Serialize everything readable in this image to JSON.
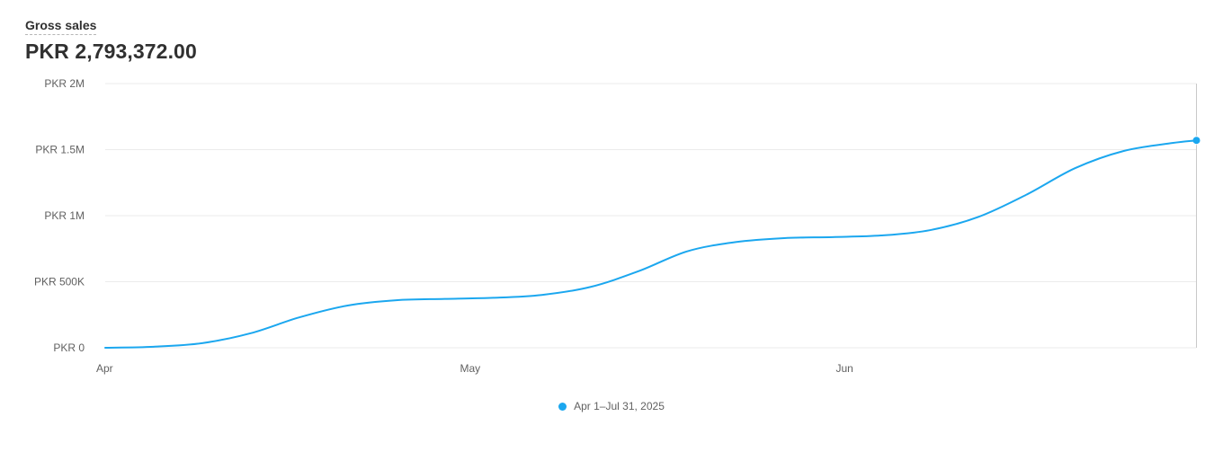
{
  "header": {
    "title": "Gross sales",
    "value": "PKR 2,793,372.00"
  },
  "colors": {
    "series": "#1ba7ef",
    "grid": "#ebebeb",
    "hover_line": "#c9c9c9"
  },
  "chart_data": {
    "type": "line",
    "title": "Gross sales",
    "xlabel": "",
    "ylabel": "",
    "ylim": [
      0,
      2000000
    ],
    "yticks": [
      {
        "value": 0,
        "label": "PKR 0"
      },
      {
        "value": 500000,
        "label": "PKR 500K"
      },
      {
        "value": 1000000,
        "label": "PKR 1M"
      },
      {
        "value": 1500000,
        "label": "PKR 1.5M"
      },
      {
        "value": 2000000,
        "label": "PKR 2M"
      }
    ],
    "xlim": [
      "2025-04-01",
      "2025-07-01"
    ],
    "xticks": [
      {
        "value": "2025-04-01",
        "label": "Apr"
      },
      {
        "value": "2025-05-01",
        "label": "May"
      },
      {
        "value": "2025-06-01",
        "label": "Jun"
      }
    ],
    "grid": true,
    "legend": "bottom-center",
    "hover_point": {
      "x": "2025-06-30",
      "y": 1570000
    },
    "series": [
      {
        "name": "Apr 1–Jul 31, 2025",
        "points": [
          {
            "x": "2025-04-01",
            "y": 0
          },
          {
            "x": "2025-04-05",
            "y": 8000
          },
          {
            "x": "2025-04-09",
            "y": 35000
          },
          {
            "x": "2025-04-13",
            "y": 110000
          },
          {
            "x": "2025-04-17",
            "y": 230000
          },
          {
            "x": "2025-04-21",
            "y": 320000
          },
          {
            "x": "2025-04-25",
            "y": 360000
          },
          {
            "x": "2025-04-29",
            "y": 370000
          },
          {
            "x": "2025-05-03",
            "y": 378000
          },
          {
            "x": "2025-05-07",
            "y": 400000
          },
          {
            "x": "2025-05-11",
            "y": 460000
          },
          {
            "x": "2025-05-15",
            "y": 580000
          },
          {
            "x": "2025-05-19",
            "y": 730000
          },
          {
            "x": "2025-05-23",
            "y": 800000
          },
          {
            "x": "2025-05-27",
            "y": 830000
          },
          {
            "x": "2025-05-31",
            "y": 838000
          },
          {
            "x": "2025-06-04",
            "y": 850000
          },
          {
            "x": "2025-06-08",
            "y": 890000
          },
          {
            "x": "2025-06-12",
            "y": 990000
          },
          {
            "x": "2025-06-16",
            "y": 1160000
          },
          {
            "x": "2025-06-20",
            "y": 1360000
          },
          {
            "x": "2025-06-24",
            "y": 1490000
          },
          {
            "x": "2025-06-28",
            "y": 1550000
          },
          {
            "x": "2025-06-30",
            "y": 1570000
          },
          {
            "x": "2025-07-01",
            "y": 1575000
          }
        ]
      }
    ]
  }
}
